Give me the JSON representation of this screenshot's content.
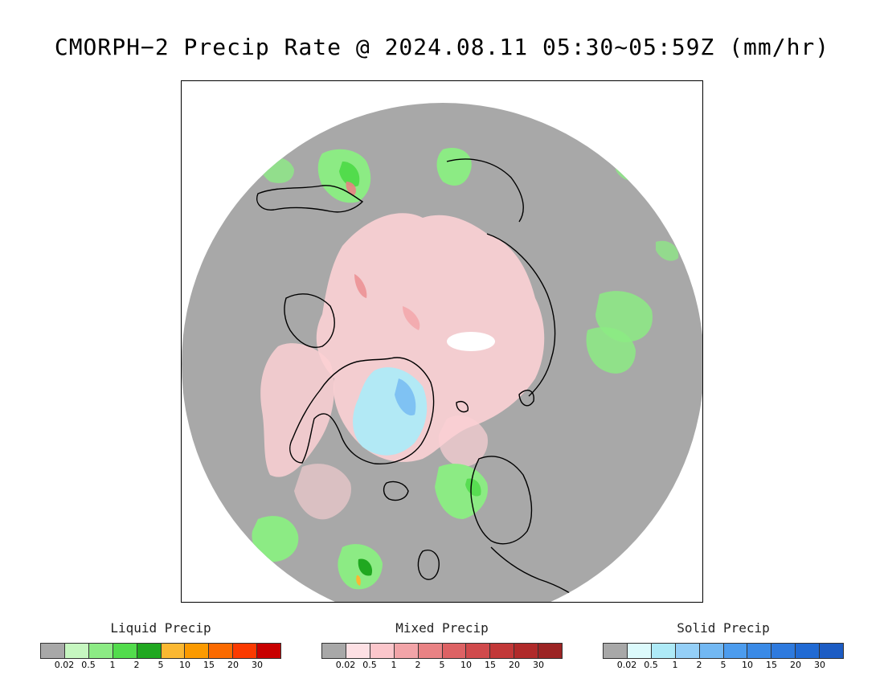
{
  "title": "CMORPH−2 Precip Rate @ 2024.08.11 05:30~05:59Z (mm/hr)",
  "map": {
    "projection": "north-polar-stereographic",
    "background_color": "#a8a8a8",
    "no_data_color": "#ffffff"
  },
  "legends": [
    {
      "title": "Liquid Precip",
      "colors": [
        "#a8a8a8",
        "#c6f7c0",
        "#8ceb84",
        "#52dc4c",
        "#20a820",
        "#fbb832",
        "#fb9a00",
        "#fb6a00",
        "#fb3a00",
        "#c80000"
      ],
      "ticks": [
        "0.02",
        "0.5",
        "1",
        "2",
        "5",
        "10",
        "15",
        "20",
        "30"
      ]
    },
    {
      "title": "Mixed Precip",
      "colors": [
        "#a8a8a8",
        "#fde0e4",
        "#fbc6cb",
        "#f2a4a8",
        "#e98284",
        "#dd6264",
        "#d04a4c",
        "#c23838",
        "#b02a2a",
        "#9c2424"
      ],
      "ticks": [
        "0.02",
        "0.5",
        "1",
        "2",
        "5",
        "10",
        "15",
        "20",
        "30"
      ]
    },
    {
      "title": "Solid Precip",
      "colors": [
        "#a8a8a8",
        "#dcfafc",
        "#aeeaf7",
        "#94cff7",
        "#72b8f3",
        "#4c9cee",
        "#3a8ae6",
        "#2e7ade",
        "#206ad4",
        "#1c5cc4"
      ],
      "ticks": [
        "0.02",
        "0.5",
        "1",
        "2",
        "5",
        "10",
        "15",
        "20",
        "30"
      ]
    }
  ]
}
